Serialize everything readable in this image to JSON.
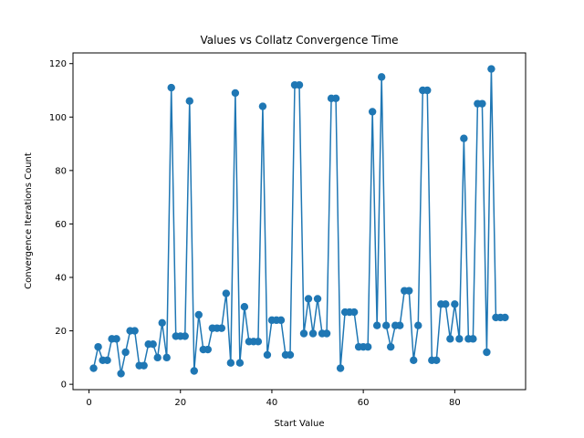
{
  "chart_data": {
    "type": "line",
    "title": "Values vs Collatz Convergence Time",
    "xlabel": "Start Value",
    "ylabel": "Convergence Iterations Count",
    "xlim": [
      -3.5,
      95.5
    ],
    "ylim": [
      -2,
      124
    ],
    "xticks": [
      0,
      20,
      40,
      60,
      80
    ],
    "yticks": [
      0,
      20,
      40,
      60,
      80,
      100,
      120
    ],
    "grid": false,
    "marker": "circle",
    "color": "#1f77b4",
    "x": [
      1,
      2,
      3,
      4,
      5,
      6,
      7,
      8,
      9,
      10,
      11,
      12,
      13,
      14,
      15,
      16,
      17,
      18,
      19,
      20,
      21,
      22,
      23,
      24,
      25,
      26,
      27,
      28,
      29,
      30,
      31,
      32,
      33,
      34,
      35,
      36,
      37,
      38,
      39,
      40,
      41,
      42,
      43,
      44,
      45,
      46,
      47,
      48,
      49,
      50,
      51,
      52,
      53,
      54,
      55,
      56,
      57,
      58,
      59,
      60,
      61,
      62,
      63,
      64,
      65,
      66,
      67,
      68,
      69,
      70,
      71,
      72,
      73,
      74,
      75,
      76,
      77,
      78,
      79,
      80,
      81,
      82,
      83,
      84,
      85,
      86,
      87,
      88,
      89,
      90,
      91
    ],
    "y": [
      6,
      14,
      9,
      9,
      17,
      17,
      4,
      12,
      20,
      20,
      7,
      7,
      15,
      15,
      10,
      23,
      10,
      111,
      18,
      18,
      18,
      106,
      5,
      26,
      13,
      13,
      21,
      21,
      21,
      34,
      8,
      109,
      8,
      29,
      16,
      16,
      16,
      104,
      11,
      24,
      24,
      24,
      11,
      11,
      112,
      112,
      19,
      32,
      19,
      32,
      19,
      19,
      107,
      107,
      6,
      27,
      27,
      27,
      14,
      14,
      14,
      102,
      22,
      115,
      22,
      14,
      22,
      22,
      35,
      35,
      9,
      22,
      110,
      110,
      9,
      9,
      30,
      30,
      17,
      30,
      17,
      92,
      17,
      17,
      105,
      105,
      12,
      118,
      25,
      25,
      25
    ]
  }
}
